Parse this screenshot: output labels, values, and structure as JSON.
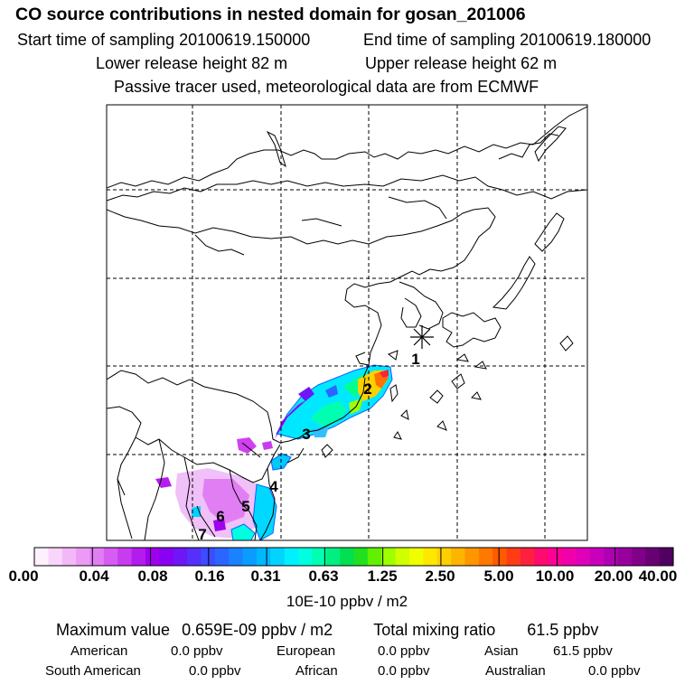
{
  "header": {
    "title": "CO  source contributions in nested domain for gosan_201006",
    "start_label": "Start time of sampling 20100619.150000",
    "end_label": "End time of sampling 20100619.180000",
    "lower_label": "Lower release height   82 m",
    "upper_label": "Upper release height   62 m",
    "note": "Passive tracer used, meteorological data are from ECMWF"
  },
  "map": {
    "receptor_marker": "asterisk-icon",
    "trajectory_labels": [
      "1",
      "2",
      "3",
      "4",
      "5",
      "6",
      "7"
    ]
  },
  "colorbar": {
    "ticks": [
      "0.00",
      "0.04",
      "0.08",
      "0.16",
      "0.31",
      "0.63",
      "1.25",
      "2.50",
      "5.00",
      "10.00",
      "20.00",
      "40.00"
    ],
    "units": "10E-10 ppbv / m2",
    "colors": [
      "#fef0ff",
      "#f9d5fb",
      "#f2b8f8",
      "#eb9bf5",
      "#e27ef4",
      "#d65cf2",
      "#c83cf0",
      "#b41cee",
      "#9f00ee",
      "#8a00f2",
      "#6f16f6",
      "#5630fa",
      "#3c4cfe",
      "#2a66ff",
      "#1a82ff",
      "#0a9cff",
      "#00b8ff",
      "#00d4ff",
      "#00f0ff",
      "#00ffe0",
      "#00ffb0",
      "#00f080",
      "#00e050",
      "#20e020",
      "#60f000",
      "#a0ff00",
      "#d0ff00",
      "#f0ff00",
      "#ffe800",
      "#ffd000",
      "#ffb400",
      "#ff9600",
      "#ff7800",
      "#ff5a00",
      "#ff3c14",
      "#ff2040",
      "#ff0a6e",
      "#ff0096",
      "#f000aa",
      "#e000b8",
      "#c800bc",
      "#b000b4",
      "#98009e",
      "#80008a",
      "#680074",
      "#500060"
    ]
  },
  "summary": {
    "max_label": "Maximum value",
    "max_value": "0.659E-09 ppbv / m2",
    "total_label": "Total mixing ratio",
    "total_value": "61.5 ppbv"
  },
  "regions": [
    {
      "name": "American",
      "value": "0.0 ppbv"
    },
    {
      "name": "European",
      "value": "0.0 ppbv"
    },
    {
      "name": "Asian",
      "value": "61.5 ppbv"
    },
    {
      "name": "South American",
      "value": "0.0 ppbv"
    },
    {
      "name": "African",
      "value": "0.0 ppbv"
    },
    {
      "name": "Australian",
      "value": "0.0 ppbv"
    }
  ]
}
